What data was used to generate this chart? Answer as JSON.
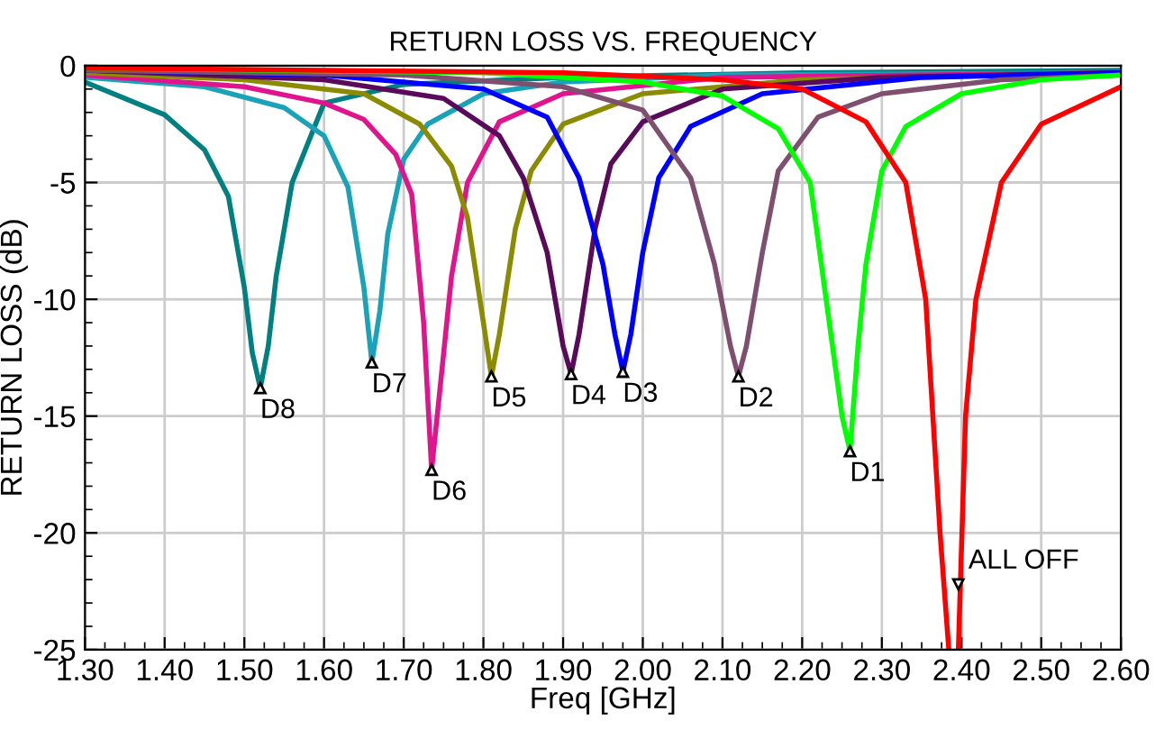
{
  "chart_data": {
    "type": "line",
    "title": "RETURN LOSS VS. FREQUENCY",
    "xlabel": "Freq [GHz]",
    "ylabel": "RETURN LOSS (dB)",
    "xlim": [
      1.3,
      2.6
    ],
    "xticks": [
      {
        "value": 1.3,
        "label": "1.30"
      },
      {
        "value": 1.4,
        "label": "1.40"
      },
      {
        "value": 1.5,
        "label": "1.50"
      },
      {
        "value": 1.6,
        "label": "1.60"
      },
      {
        "value": 1.7,
        "label": "1.70"
      },
      {
        "value": 1.8,
        "label": "1.80"
      },
      {
        "value": 1.9,
        "label": "1.90"
      },
      {
        "value": 2.0,
        "label": "2.00"
      },
      {
        "value": 2.1,
        "label": "2.10"
      },
      {
        "value": 2.2,
        "label": "2.20"
      },
      {
        "value": 2.3,
        "label": "2.30"
      },
      {
        "value": 2.4,
        "label": "2.40"
      },
      {
        "value": 2.5,
        "label": "2.50"
      },
      {
        "value": 2.6,
        "label": "2.60"
      }
    ],
    "ylim": [
      -25,
      0
    ],
    "yticks": [
      -25,
      -20,
      -15,
      -10,
      -5,
      0
    ],
    "grid": true,
    "legend": false,
    "marker": "none",
    "line_style": "solid",
    "series": [
      {
        "color": "#008080",
        "x": [
          1.3,
          1.4,
          1.45,
          1.48,
          1.5,
          1.51,
          1.52,
          1.53,
          1.54,
          1.56,
          1.6,
          1.7,
          1.9,
          2.2,
          2.6
        ],
        "values": [
          -0.7,
          -2.1,
          -3.6,
          -5.6,
          -9.5,
          -12.3,
          -13.8,
          -12,
          -9,
          -5,
          -1.6,
          -0.8,
          -0.5,
          -0.3,
          -0.2
        ]
      },
      {
        "color": "#1aa3b8",
        "x": [
          1.3,
          1.45,
          1.55,
          1.6,
          1.63,
          1.65,
          1.66,
          1.67,
          1.68,
          1.7,
          1.73,
          1.8,
          1.9,
          2.1,
          2.6
        ],
        "values": [
          -0.5,
          -0.9,
          -1.8,
          -3,
          -5.2,
          -9.5,
          -12.7,
          -10.5,
          -7.2,
          -4.0,
          -2.5,
          -1.2,
          -0.7,
          -0.4,
          -0.3
        ]
      },
      {
        "color": "#e0148c",
        "x": [
          1.3,
          1.5,
          1.6,
          1.65,
          1.69,
          1.71,
          1.725,
          1.735,
          1.745,
          1.76,
          1.78,
          1.82,
          1.9,
          2.1,
          2.6
        ],
        "values": [
          -0.4,
          -0.9,
          -1.6,
          -2.3,
          -3.8,
          -5.5,
          -11,
          -17.3,
          -14,
          -9,
          -5,
          -2.4,
          -1.2,
          -0.5,
          -0.3
        ]
      },
      {
        "color": "#8b8b00",
        "x": [
          1.3,
          1.5,
          1.65,
          1.72,
          1.76,
          1.78,
          1.8,
          1.81,
          1.82,
          1.84,
          1.86,
          1.9,
          2.0,
          2.2,
          2.6
        ],
        "values": [
          -0.3,
          -0.6,
          -1.2,
          -2.5,
          -4.3,
          -6.5,
          -11,
          -13.3,
          -11.5,
          -7,
          -4.5,
          -2.5,
          -1.2,
          -0.6,
          -0.3
        ]
      },
      {
        "color": "#5a0a5a",
        "x": [
          1.3,
          1.6,
          1.75,
          1.82,
          1.85,
          1.88,
          1.9,
          1.91,
          1.92,
          1.94,
          1.96,
          2.0,
          2.1,
          2.3,
          2.6
        ],
        "values": [
          -0.2,
          -0.6,
          -1.4,
          -3.0,
          -4.8,
          -8,
          -12,
          -13.2,
          -11.5,
          -7,
          -4.2,
          -2.4,
          -1.0,
          -0.5,
          -0.3
        ]
      },
      {
        "color": "#0000ff",
        "x": [
          1.3,
          1.6,
          1.8,
          1.88,
          1.92,
          1.95,
          1.965,
          1.975,
          1.985,
          2.0,
          2.02,
          2.06,
          2.15,
          2.35,
          2.6
        ],
        "values": [
          -0.2,
          -0.4,
          -1.0,
          -2.2,
          -4.8,
          -8.5,
          -11.5,
          -13.1,
          -11.5,
          -8,
          -4.8,
          -2.6,
          -1.2,
          -0.5,
          -0.3
        ]
      },
      {
        "color": "#7f4f6f",
        "x": [
          1.3,
          1.7,
          1.9,
          2.0,
          2.06,
          2.09,
          2.11,
          2.12,
          2.13,
          2.15,
          2.17,
          2.22,
          2.3,
          2.45,
          2.6
        ],
        "values": [
          -0.2,
          -0.4,
          -0.9,
          -1.9,
          -4.8,
          -8.5,
          -12,
          -13.3,
          -12,
          -8,
          -4.5,
          -2.2,
          -1.2,
          -0.6,
          -0.4
        ]
      },
      {
        "color": "#00ff00",
        "x": [
          1.3,
          1.8,
          2.0,
          2.1,
          2.17,
          2.21,
          2.23,
          2.25,
          2.26,
          2.27,
          2.28,
          2.3,
          2.33,
          2.4,
          2.5,
          2.6
        ],
        "values": [
          -0.1,
          -0.3,
          -0.7,
          -1.3,
          -2.7,
          -5,
          -10,
          -15,
          -16.5,
          -12,
          -8.5,
          -4.5,
          -2.6,
          -1.2,
          -0.6,
          -0.4
        ]
      },
      {
        "color": "#ff0000",
        "x": [
          1.3,
          1.9,
          2.1,
          2.2,
          2.28,
          2.33,
          2.355,
          2.373,
          2.384,
          2.39,
          2.396,
          2.405,
          2.418,
          2.45,
          2.5,
          2.6
        ],
        "values": [
          -0.1,
          -0.3,
          -0.6,
          -1,
          -2.4,
          -5,
          -10,
          -20,
          -25,
          null,
          -25,
          -15,
          -10,
          -5,
          -2.5,
          -0.9
        ]
      }
    ],
    "annotations": [
      {
        "text": "D8",
        "x": 1.52,
        "y": -13.8
      },
      {
        "text": "D7",
        "x": 1.66,
        "y": -12.7
      },
      {
        "text": "D6",
        "x": 1.735,
        "y": -17.3
      },
      {
        "text": "D5",
        "x": 1.81,
        "y": -13.3
      },
      {
        "text": "D4",
        "x": 1.91,
        "y": -13.2
      },
      {
        "text": "D3",
        "x": 1.975,
        "y": -13.1
      },
      {
        "text": "D2",
        "x": 2.12,
        "y": -13.3
      },
      {
        "text": "D1",
        "x": 2.26,
        "y": -16.5
      },
      {
        "text": "ALL OFF",
        "x": 2.396,
        "y": -22.2
      }
    ]
  }
}
